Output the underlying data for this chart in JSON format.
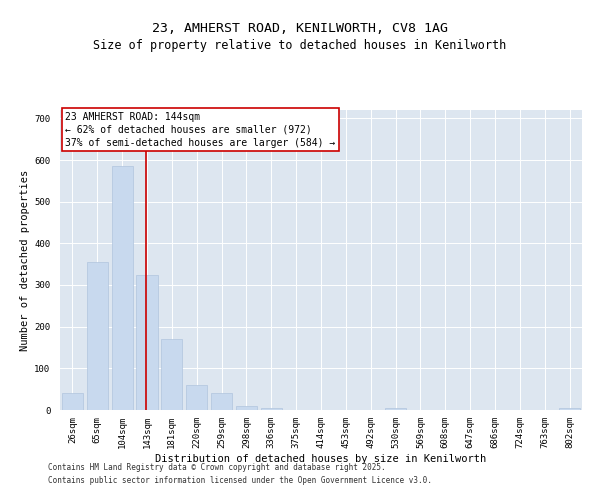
{
  "title_line1": "23, AMHERST ROAD, KENILWORTH, CV8 1AG",
  "title_line2": "Size of property relative to detached houses in Kenilworth",
  "xlabel": "Distribution of detached houses by size in Kenilworth",
  "ylabel": "Number of detached properties",
  "bins": [
    "26sqm",
    "65sqm",
    "104sqm",
    "143sqm",
    "181sqm",
    "220sqm",
    "259sqm",
    "298sqm",
    "336sqm",
    "375sqm",
    "414sqm",
    "453sqm",
    "492sqm",
    "530sqm",
    "569sqm",
    "608sqm",
    "647sqm",
    "686sqm",
    "724sqm",
    "763sqm",
    "802sqm"
  ],
  "values": [
    40,
    355,
    585,
    325,
    170,
    60,
    40,
    10,
    5,
    0,
    0,
    0,
    0,
    5,
    0,
    0,
    0,
    0,
    0,
    0,
    5
  ],
  "bar_color": "#c8d9ee",
  "bar_edge_color": "#b0c4de",
  "vline_color": "#cc0000",
  "vline_x": 2.95,
  "annotation_text": "23 AMHERST ROAD: 144sqm\n← 62% of detached houses are smaller (972)\n37% of semi-detached houses are larger (584) →",
  "annotation_box_facecolor": "#ffffff",
  "annotation_box_edgecolor": "#cc0000",
  "ylim": [
    0,
    720
  ],
  "yticks": [
    0,
    100,
    200,
    300,
    400,
    500,
    600,
    700
  ],
  "background_color": "#dde6f0",
  "grid_color": "#ffffff",
  "footer_line1": "Contains HM Land Registry data © Crown copyright and database right 2025.",
  "footer_line2": "Contains public sector information licensed under the Open Government Licence v3.0.",
  "title_fontsize": 9.5,
  "subtitle_fontsize": 8.5,
  "ylabel_fontsize": 7.5,
  "xlabel_fontsize": 7.5,
  "tick_fontsize": 6.5,
  "annotation_fontsize": 7,
  "footer_fontsize": 5.5
}
